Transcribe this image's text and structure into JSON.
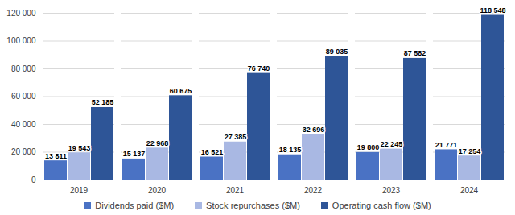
{
  "chart_data": {
    "type": "bar",
    "categories": [
      "2019",
      "2020",
      "2021",
      "2022",
      "2023",
      "2024"
    ],
    "series": [
      {
        "name": "Dividends paid ($M)",
        "color": "#4a72c4",
        "values": [
          13811,
          15137,
          16521,
          18135,
          19800,
          21771
        ],
        "value_labels": [
          "13 811",
          "15 137",
          "16 521",
          "18 135",
          "19 800",
          "21 771"
        ]
      },
      {
        "name": "Stock repurchases ($M)",
        "color": "#a9b8e3",
        "values": [
          19543,
          22968,
          27385,
          32696,
          22245,
          17254
        ],
        "value_labels": [
          "19 543",
          "22 968",
          "27 385",
          "32 696",
          "22 245",
          "17 254"
        ]
      },
      {
        "name": "Operating cash flow ($M)",
        "color": "#2e5597",
        "values": [
          52185,
          60675,
          76740,
          89035,
          87582,
          118548
        ],
        "value_labels": [
          "52 185",
          "60 675",
          "76 740",
          "89 035",
          "87 582",
          "118 548"
        ]
      }
    ],
    "ylim": [
      0,
      120000
    ],
    "yticks": [
      0,
      {
        "value": 20000,
        "label": "20 000"
      },
      {
        "value": 40000,
        "label": "40 000"
      },
      {
        "value": 60000,
        "label": "60 000"
      },
      {
        "value": 80000,
        "label": "80 000"
      },
      {
        "value": 100000,
        "label": "100 000"
      },
      {
        "value": 120000,
        "label": "120 000"
      }
    ],
    "grid": true,
    "data_labels": true,
    "legend": "bottom"
  }
}
